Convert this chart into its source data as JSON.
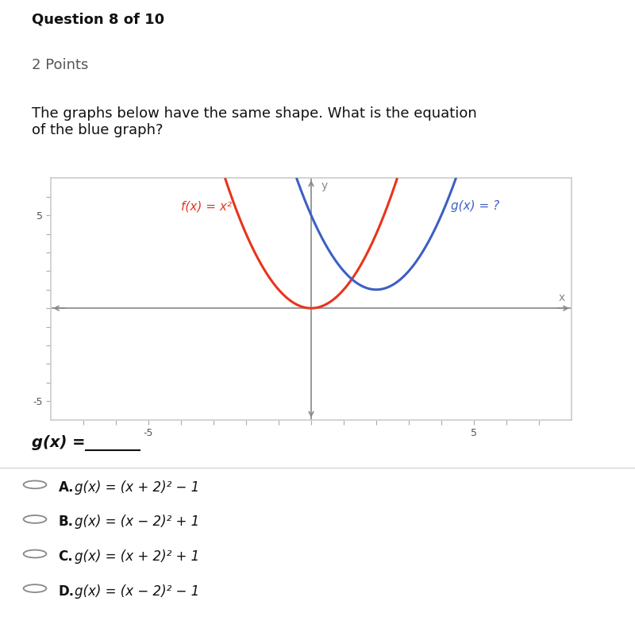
{
  "title_bold": "Question 8 of 10",
  "title_sub": "2 Points",
  "description": "The graphs below have the same shape. What is the equation\nof the blue graph?",
  "red_label": "f(x) = x²",
  "blue_label": "g(x) = ?",
  "red_color": "#e8341c",
  "blue_color": "#3d5fc4",
  "xlim": [
    -8,
    8
  ],
  "ylim": [
    -6,
    7
  ],
  "xtick_label_pos": [
    -5,
    5
  ],
  "ytick_label_pos": [
    5,
    -5
  ],
  "options": [
    {
      "letter": "A.",
      "text": "g(x) = (x + 2)² − 1"
    },
    {
      "letter": "B.",
      "text": "g(x) = (x − 2)² + 1"
    },
    {
      "letter": "C.",
      "text": "g(x) = (x + 2)² + 1"
    },
    {
      "letter": "D.",
      "text": "g(x) = (x − 2)² − 1"
    }
  ],
  "red_vertex": [
    0,
    0
  ],
  "blue_vertex": [
    2,
    1
  ],
  "bg_color": "#ffffff",
  "axis_color": "#888888",
  "plot_box_color": "#cccccc",
  "figsize": [
    8.0,
    8.01
  ],
  "dpi": 100
}
